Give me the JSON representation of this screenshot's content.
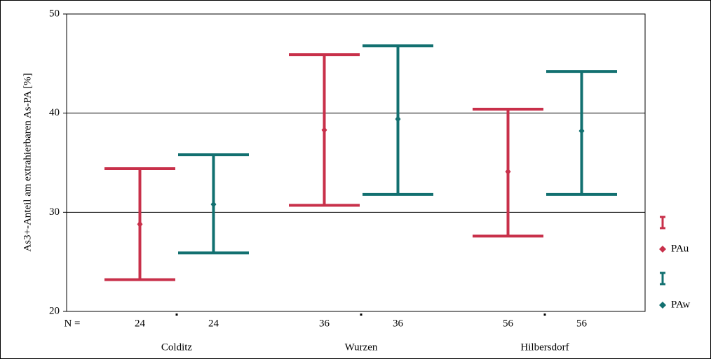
{
  "chart_data": {
    "type": "errorbar",
    "y_label": "As3+-Anteil am extrahierbaren As-PA [%]",
    "n_label": "N =",
    "categories": [
      "Colditz",
      "Wurzen",
      "Hilbersdorf"
    ],
    "series": [
      {
        "name": "PAu",
        "color": "#c8304a",
        "values": [
          28.8,
          38.3,
          34.1
        ],
        "lower": [
          23.2,
          30.7,
          27.6
        ],
        "upper": [
          34.4,
          45.9,
          40.4
        ],
        "n": [
          24,
          36,
          56
        ]
      },
      {
        "name": "PAw",
        "color": "#127070",
        "values": [
          30.8,
          39.4,
          38.2
        ],
        "lower": [
          25.9,
          31.8,
          31.8
        ],
        "upper": [
          35.8,
          46.8,
          44.2
        ],
        "n": [
          24,
          36,
          56
        ]
      }
    ],
    "ylim": [
      20,
      50
    ],
    "yticks": [
      20,
      30,
      40,
      50
    ],
    "grid": true,
    "legend": "right"
  }
}
